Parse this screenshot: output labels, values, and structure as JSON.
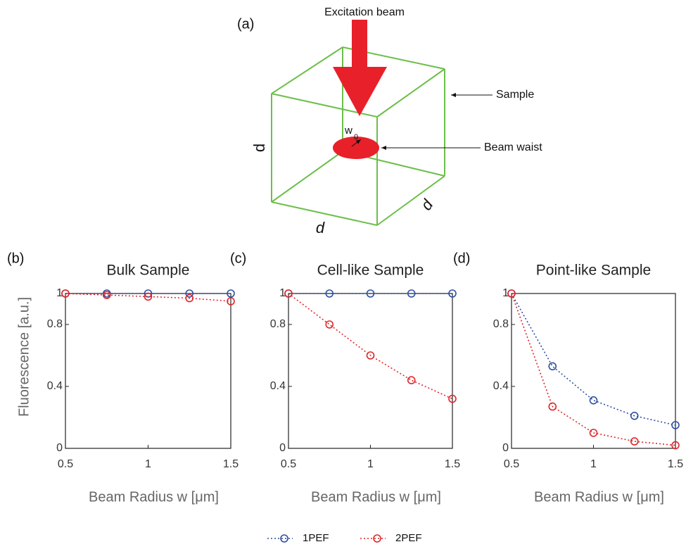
{
  "diagram": {
    "panel": "(a)",
    "beam": "Excitation beam",
    "sample": "Sample",
    "waist": "Beam waist",
    "waist_symbol": "w",
    "waist_subscript": "0",
    "edge_labels": [
      "d",
      "d",
      "d"
    ]
  },
  "chart_data": [
    {
      "type": "line",
      "panel": "(b)",
      "title": "Bulk Sample",
      "ylabel": "Fluorescence [a.u.]",
      "xlabel": "Beam Radius w  [μm]",
      "x": [
        0.5,
        0.75,
        1,
        1.25,
        1.5
      ],
      "xlim": [
        0.5,
        1.5
      ],
      "xticks": [
        0.5,
        1,
        1.5
      ],
      "ylim": [
        0,
        1
      ],
      "yticks": [
        0,
        0.4,
        0.8,
        1
      ],
      "series": [
        {
          "name": "1PEF",
          "color": "#2f4fa0",
          "values": [
            1,
            1,
            1,
            1,
            1
          ]
        },
        {
          "name": "2PEF",
          "color": "#e0262a",
          "values": [
            1,
            0.99,
            0.98,
            0.97,
            0.95
          ]
        }
      ]
    },
    {
      "type": "line",
      "panel": "(c)",
      "title": "Cell-like Sample",
      "xlabel": "Beam Radius w  [μm]",
      "x": [
        0.5,
        0.75,
        1,
        1.25,
        1.5
      ],
      "xlim": [
        0.5,
        1.5
      ],
      "xticks": [
        0.5,
        1,
        1.5
      ],
      "ylim": [
        0,
        1
      ],
      "yticks": [
        0,
        0.4,
        0.8,
        1
      ],
      "series": [
        {
          "color": "#2f4fa0",
          "values": [
            1,
            1,
            1,
            1,
            1
          ]
        },
        {
          "color": "#e0262a",
          "values": [
            1,
            0.8,
            0.6,
            0.44,
            0.32
          ]
        }
      ]
    },
    {
      "type": "line",
      "panel": "(d)",
      "title": "Point-like Sample",
      "xlabel": "Beam Radius w  [μm]",
      "x": [
        0.5,
        0.75,
        1,
        1.25,
        1.5
      ],
      "xlim": [
        0.5,
        1.5
      ],
      "xticks": [
        0.5,
        1,
        1.5
      ],
      "ylim": [
        0,
        1
      ],
      "yticks": [
        0,
        0.4,
        0.8,
        1
      ],
      "series": [
        {
          "color": "#2f4fa0",
          "values": [
            1,
            0.53,
            0.31,
            0.21,
            0.15
          ]
        },
        {
          "color": "#e0262a",
          "values": [
            1,
            0.27,
            0.1,
            0.045,
            0.02
          ]
        }
      ]
    }
  ]
}
